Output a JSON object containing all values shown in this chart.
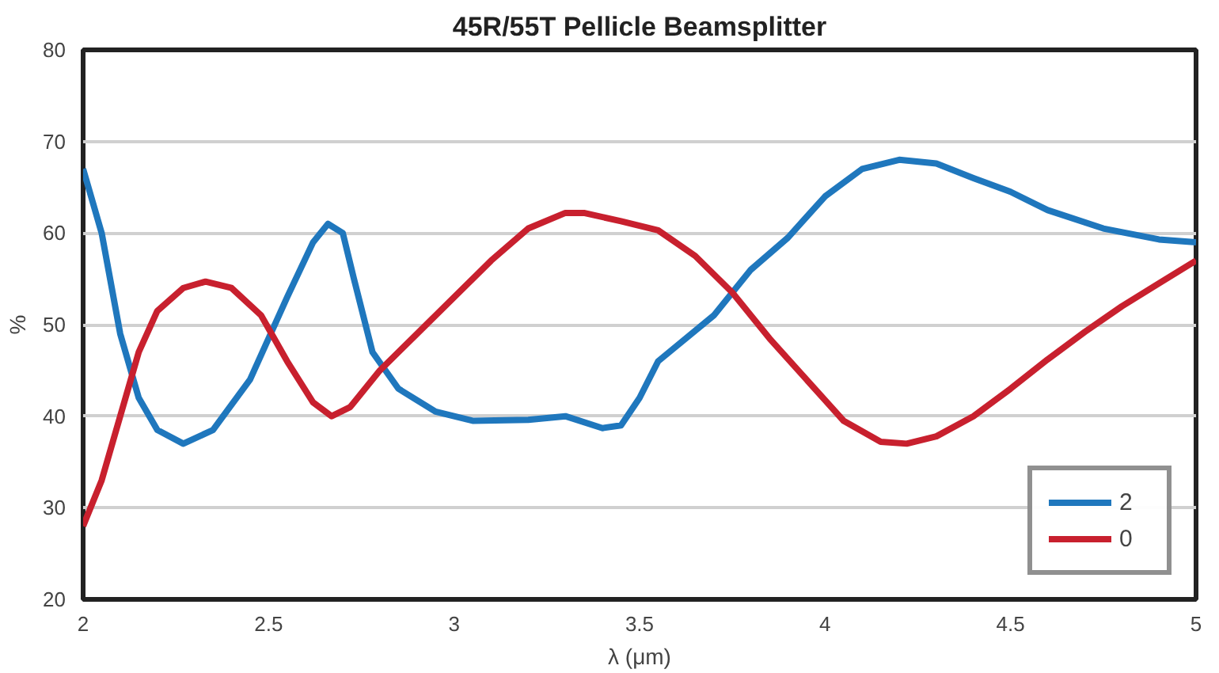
{
  "chart_data": {
    "type": "line",
    "title": "45R/55T Pellicle Beamsplitter",
    "xlabel": "λ (μm)",
    "ylabel": "%",
    "xlim": [
      2,
      5
    ],
    "xticks": [
      2,
      2.5,
      3,
      3.5,
      4,
      4.5,
      5
    ],
    "ylim": [
      20,
      80
    ],
    "yticks": [
      20,
      30,
      40,
      50,
      60,
      70,
      80
    ],
    "grid": "y",
    "legend": "bottom right",
    "series": [
      {
        "name": "2",
        "color": "#1f77bd",
        "x": [
          2,
          2.05,
          2.1,
          2.15,
          2.2,
          2.27,
          2.35,
          2.45,
          2.55,
          2.62,
          2.66,
          2.7,
          2.73,
          2.78,
          2.85,
          2.95,
          3.05,
          3.2,
          3.3,
          3.4,
          3.45,
          3.5,
          3.55,
          3.7,
          3.8,
          3.9,
          4.0,
          4.1,
          4.2,
          4.3,
          4.4,
          4.5,
          4.6,
          4.75,
          4.9,
          5
        ],
        "values": [
          67,
          60,
          49,
          42,
          38.5,
          37,
          38.5,
          44,
          53,
          59,
          61,
          60,
          55,
          47,
          43,
          40.5,
          39.5,
          39.6,
          40,
          38.7,
          39,
          42,
          46,
          51,
          56,
          59.5,
          64,
          67,
          68,
          67.6,
          66,
          64.5,
          62.5,
          60.5,
          59.3,
          59
        ]
      },
      {
        "name": "0",
        "color": "#c8202e",
        "x": [
          2,
          2.05,
          2.1,
          2.15,
          2.2,
          2.27,
          2.33,
          2.4,
          2.48,
          2.55,
          2.62,
          2.67,
          2.72,
          2.8,
          2.9,
          3.0,
          3.1,
          3.2,
          3.3,
          3.35,
          3.45,
          3.55,
          3.65,
          3.75,
          3.85,
          3.95,
          4.05,
          4.15,
          4.22,
          4.3,
          4.4,
          4.5,
          4.6,
          4.7,
          4.8,
          4.9,
          5
        ],
        "values": [
          28,
          33,
          40,
          47,
          51.5,
          54,
          54.7,
          54,
          51,
          46,
          41.5,
          40,
          41,
          45,
          49,
          53,
          57,
          60.5,
          62.2,
          62.2,
          61.3,
          60.3,
          57.5,
          53.5,
          48.5,
          44,
          39.5,
          37.2,
          37,
          37.8,
          40,
          43,
          46.2,
          49.2,
          52,
          54.5,
          57
        ]
      }
    ]
  }
}
